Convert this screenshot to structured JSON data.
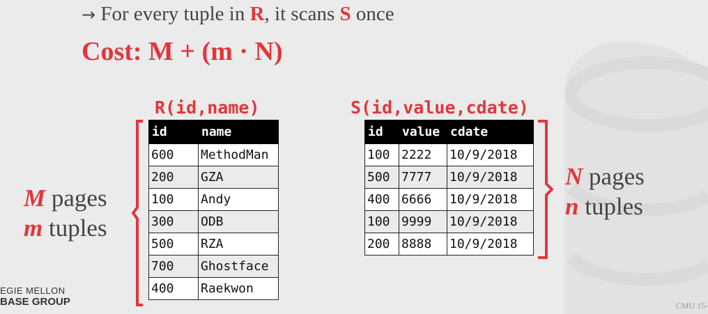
{
  "line1": {
    "prefix": "For every tuple in ",
    "r": "R",
    "middle": ", it scans ",
    "s": "S",
    "suffix": " once"
  },
  "cost": "Cost: M + (m · N)",
  "table_r": {
    "title": "R(id,name)",
    "headers": [
      "id",
      "name"
    ],
    "rows": [
      [
        "600",
        "MethodMan"
      ],
      [
        "200",
        "GZA"
      ],
      [
        "100",
        "Andy"
      ],
      [
        "300",
        "ODB"
      ],
      [
        "500",
        "RZA"
      ],
      [
        "700",
        "Ghostface"
      ],
      [
        "400",
        "Raekwon"
      ]
    ]
  },
  "table_s": {
    "title": "S(id,value,cdate)",
    "headers": [
      "id",
      "value",
      "cdate"
    ],
    "rows": [
      [
        "100",
        "2222",
        "10/9/2018"
      ],
      [
        "500",
        "7777",
        "10/9/2018"
      ],
      [
        "400",
        "6666",
        "10/9/2018"
      ],
      [
        "100",
        "9999",
        "10/9/2018"
      ],
      [
        "200",
        "8888",
        "10/9/2018"
      ]
    ]
  },
  "left_label": {
    "var1": "M",
    "text1": " pages",
    "var2": "m",
    "text2": " tuples"
  },
  "right_label": {
    "var1": "N",
    "text1": " pages",
    "var2": "n",
    "text2": " tuples"
  },
  "footer": {
    "logo_line1": "EGIE MELLON",
    "logo_line2": "BASE GROUP",
    "course": "CMU 15-"
  },
  "colors": {
    "accent": "#e0363c",
    "background": "#ebebeb"
  }
}
